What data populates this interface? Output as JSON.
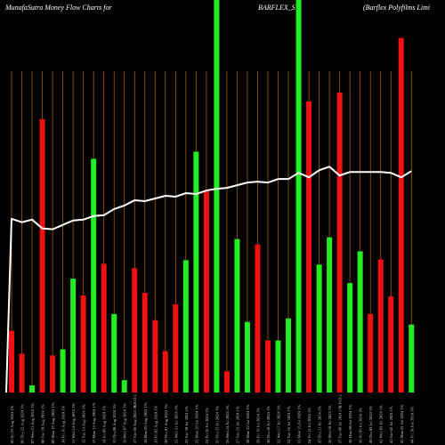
{
  "header": {
    "brand_title": "MunafaSutra  Money Flow  Charts for",
    "symbol": "BARFLEX_S",
    "company": "(Barflex Polyfilms Limi"
  },
  "colors": {
    "background": "#000000",
    "grid": "#b8680a",
    "up": "#22ee22",
    "down": "#ee1111",
    "line": "#ffffff",
    "label": "#cccccc"
  },
  "chart_data": {
    "type": "bar",
    "title": "MunafaSutra  Money Flow  Charts for BARFLEX_S (Barflex Polyfilms Limi",
    "xlabel": "",
    "ylabel": "",
    "grid": true,
    "categories": [
      "05 Fri 23 Aug 2024 1%",
      "06 Thu 22 Aug 2024 1%",
      "07 Wed 21 Aug 2024 1%",
      "08 Tue 20 Aug 2024 1%",
      "09 Mon 19 Aug 2024 1%",
      "10 Fri 16 Aug 2024 1%",
      "11 Wed 14 Aug 2024 1%",
      "12 Tue 13 Aug 2024 1%",
      "13 Mon 12 Aug 2024 1%",
      "14 Fri 09 Aug 2024 1%",
      "15 Thu 08 Aug 2024 1%",
      "16 Wed 07 Aug 2024 1%",
      "17 Tue 06 Aug 2024 1%",
      "18 Mon 05 Aug 2024 1%",
      "19 Fri 02 Aug 2024 1%",
      "20 Thu 01 Aug 2024 1%",
      "21 Wed 31 Jul 2024 1%",
      "22 Tue 30 Jul 2024 1%",
      "23 Mon 29 Jul 2024 1%",
      "24 Fri 26 Jul 2024 1%",
      "25 Thu 25 Jul 2024 1%",
      "26 Wed 24 Jul 2024 1%",
      "27 Tue 23 Jul 2024 1%",
      "28 Mon 22 Jul 2024 1%",
      "29 Fri 19 Jul 2024 1%",
      "30 Thu 18 Jul 2024 1%",
      "31 Wed 17 Jul 2024 1%",
      "32 Tue 16 Jul 2024 1%",
      "33 Mon 15 Jul 2024 1%",
      "34 Fri 12 Jul 2024 1%",
      "35 Thu 11 Jul 2024 1%",
      "36 Wed 10 Jul 2024 1%",
      "37 Tue 09 Jul 2024 1%",
      "38 Mon 08 Jul 2024 1%",
      "39 Fri 05 Jul 2024 1%",
      "40 Thu 04 Jul 2024 1%",
      "41 Wed 03 Jul 2024 1%",
      "42 Tue 02 Jul 2024 1%",
      "43 Mon 01 Jul 2024 1%",
      "44 Fri 28 Jun 2024 1%"
    ],
    "bars": [
      {
        "value": 70,
        "color": "red"
      },
      {
        "value": 44,
        "color": "red"
      },
      {
        "value": 8,
        "color": "green"
      },
      {
        "value": 310,
        "color": "red"
      },
      {
        "value": 42,
        "color": "red"
      },
      {
        "value": 49,
        "color": "green"
      },
      {
        "value": 129,
        "color": "green"
      },
      {
        "value": 110,
        "color": "red"
      },
      {
        "value": 265,
        "color": "green"
      },
      {
        "value": 146,
        "color": "red"
      },
      {
        "value": 89,
        "color": "green"
      },
      {
        "value": 14,
        "color": "green"
      },
      {
        "value": 141,
        "color": "red"
      },
      {
        "value": 113,
        "color": "red"
      },
      {
        "value": 82,
        "color": "red"
      },
      {
        "value": 47,
        "color": "red"
      },
      {
        "value": 100,
        "color": "red"
      },
      {
        "value": 150,
        "color": "green"
      },
      {
        "value": 273,
        "color": "green"
      },
      {
        "value": 229,
        "color": "red"
      },
      {
        "value": 445,
        "color": "green"
      },
      {
        "value": 24,
        "color": "red"
      },
      {
        "value": 174,
        "color": "green"
      },
      {
        "value": 80,
        "color": "green"
      },
      {
        "value": 168,
        "color": "red"
      },
      {
        "value": 59,
        "color": "red"
      },
      {
        "value": 59,
        "color": "green"
      },
      {
        "value": 84,
        "color": "green"
      },
      {
        "value": 445,
        "color": "green"
      },
      {
        "value": 330,
        "color": "red"
      },
      {
        "value": 145,
        "color": "green"
      },
      {
        "value": 176,
        "color": "green"
      },
      {
        "value": 340,
        "color": "red"
      },
      {
        "value": 124,
        "color": "green"
      },
      {
        "value": 160,
        "color": "green"
      },
      {
        "value": 89,
        "color": "red"
      },
      {
        "value": 151,
        "color": "red"
      },
      {
        "value": 109,
        "color": "red"
      },
      {
        "value": 402,
        "color": "red"
      },
      {
        "value": 77,
        "color": "green"
      }
    ],
    "line": [
      197,
      193,
      196,
      186,
      185,
      190,
      195,
      196,
      200,
      201,
      208,
      212,
      218,
      217,
      220,
      223,
      222,
      226,
      225,
      229,
      231,
      232,
      235,
      238,
      239,
      238,
      242,
      242,
      249,
      244,
      252,
      256,
      246,
      250,
      250,
      250,
      250,
      249,
      244,
      251
    ]
  },
  "separator_labels": [
    "S.N.D.L",
    "S.N.D.L"
  ]
}
